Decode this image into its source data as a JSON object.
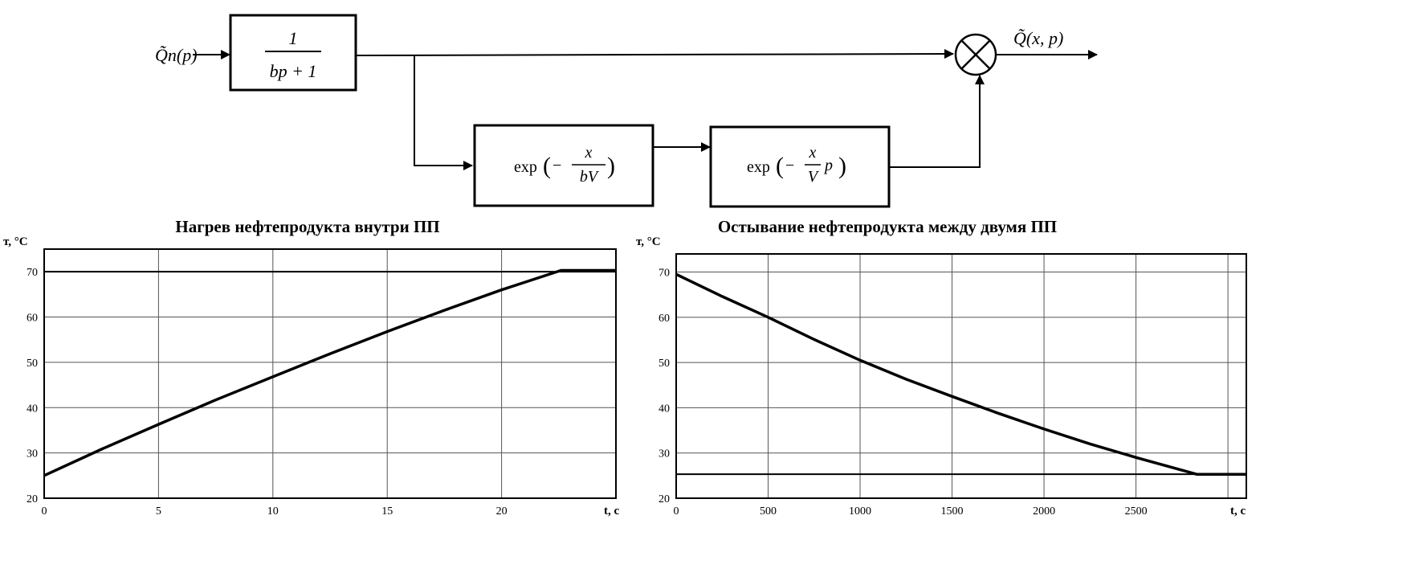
{
  "diagram": {
    "input_label": "Q̃п(p)",
    "output_label": "Q̃(x, p)",
    "block1": {
      "numerator": "1",
      "denominator": "bp + 1"
    },
    "block2": {
      "func": "exp",
      "sign": "−",
      "numerator": "x",
      "denominator": "bV"
    },
    "block3": {
      "func": "exp",
      "sign": "−",
      "numerator": "x",
      "denominator": "V",
      "suffix": "p"
    },
    "summing_junction": "multiply"
  },
  "chart_data": [
    {
      "type": "line",
      "title": "Нагрев нефтепродукта внутри ПП",
      "ylabel": "т, °С",
      "xlabel": "t, с",
      "xlim": [
        0,
        25
      ],
      "ylim": [
        20,
        75
      ],
      "xticks": [
        "0",
        "5",
        "10",
        "15",
        "20"
      ],
      "yticks": [
        "20",
        "30",
        "40",
        "50",
        "60",
        "70"
      ],
      "grid": true,
      "reference_line": 70,
      "x": [
        0,
        2.5,
        5,
        7.5,
        10,
        12.5,
        15,
        17.5,
        20,
        22.6,
        25
      ],
      "y": [
        25,
        30.8,
        36.3,
        41.7,
        46.8,
        51.9,
        56.8,
        61.5,
        66,
        70.3,
        70.3
      ]
    },
    {
      "type": "line",
      "title": "Остывание нефтепродукта между двумя ПП",
      "ylabel": "т, °С",
      "xlabel": "t, с",
      "xlim": [
        0,
        3100
      ],
      "ylim": [
        20,
        74
      ],
      "xticks": [
        "0",
        "500",
        "1000",
        "1500",
        "2000",
        "2500"
      ],
      "yticks": [
        "20",
        "30",
        "40",
        "50",
        "60",
        "70"
      ],
      "grid": true,
      "reference_line": 25.3,
      "x": [
        0,
        250,
        500,
        750,
        1000,
        1250,
        1500,
        1750,
        2000,
        2250,
        2500,
        2830,
        3100
      ],
      "y": [
        69.5,
        64.6,
        60,
        55.1,
        50.5,
        46.3,
        42.5,
        38.8,
        35.3,
        32,
        29,
        25.3,
        25.3
      ]
    }
  ]
}
